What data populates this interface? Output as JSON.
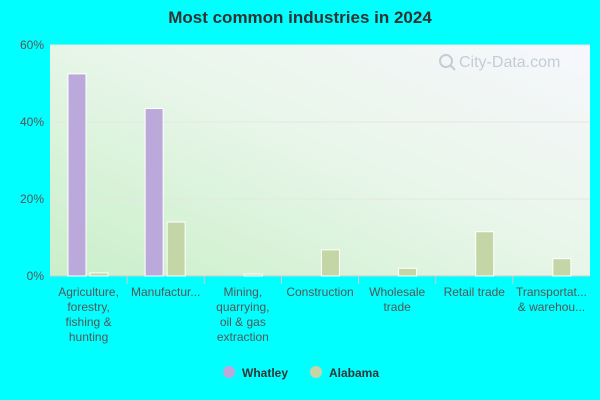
{
  "chart_data": {
    "type": "bar",
    "title": "Most common industries in 2024",
    "categories": [
      [
        "Agriculture,",
        "forestry,",
        "fishing &",
        "hunting"
      ],
      [
        "Manufactur..."
      ],
      [
        "Mining,",
        "quarrying,",
        "oil & gas",
        "extraction"
      ],
      [
        "Construction"
      ],
      [
        "Wholesale",
        "trade"
      ],
      [
        "Retail trade"
      ],
      [
        "Transportat...",
        "& warehou..."
      ]
    ],
    "series": [
      {
        "name": "Whatley",
        "color": "#bca9dc",
        "values": [
          52.5,
          43.5,
          0,
          0,
          0,
          0,
          0
        ]
      },
      {
        "name": "Alabama",
        "color": "#c5d6a6",
        "values": [
          0.8,
          14,
          0.5,
          6.8,
          2,
          11.5,
          4.5
        ]
      }
    ],
    "yticks": [
      "0%",
      "20%",
      "40%",
      "60%"
    ],
    "ylim": [
      0,
      60
    ],
    "legend_position": "bottom",
    "watermark": "City-Data.com"
  }
}
